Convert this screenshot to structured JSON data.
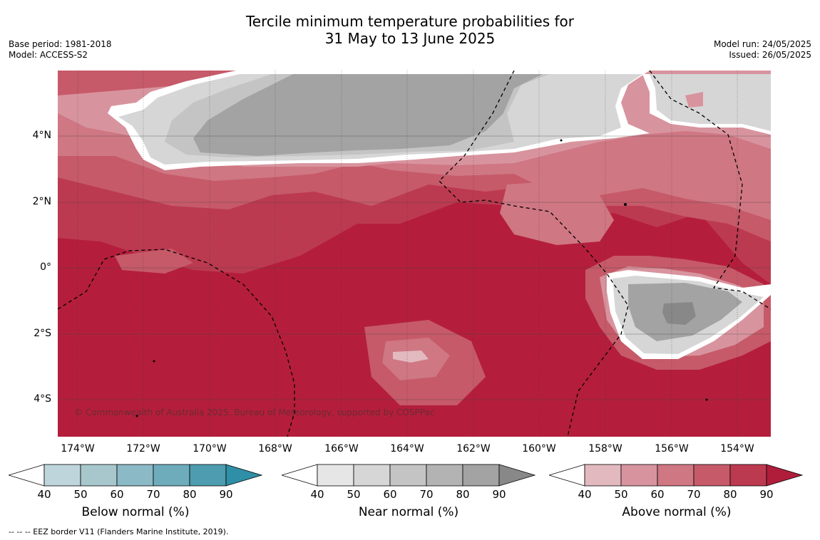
{
  "title_line1": "Tercile minimum temperature probabilities for",
  "title_line2": "31 May to 13 June 2025",
  "base_period": "Base period: 1981-2018",
  "model": "Model: ACCESS-S2",
  "model_run": "Model run: 24/05/2025",
  "issued": "Issued: 26/05/2025",
  "copyright": "© Commonwealth of Australia 2025, Bureau of Meteorology, supported by COSPPac",
  "footnote": "--  --  -- EEZ border V11 (Flanders Marine Institute, 2019).",
  "map": {
    "lon_labels": [
      "174°W",
      "172°W",
      "170°W",
      "168°W",
      "166°W",
      "164°W",
      "162°W",
      "160°W",
      "158°W",
      "156°W",
      "154°W"
    ],
    "lat_labels": [
      "4°N",
      "2°N",
      "0°",
      "2°S",
      "4°S"
    ]
  },
  "colorbars": [
    {
      "title": "Below normal (%)",
      "ticks": [
        "40",
        "50",
        "60",
        "70",
        "80",
        "90"
      ],
      "colors": [
        "#bfd5dc",
        "#a7c7cd",
        "#8bb9c6",
        "#6eacbc",
        "#4d9caf",
        "#2f8fa6"
      ]
    },
    {
      "title": "Near normal (%)",
      "ticks": [
        "40",
        "50",
        "60",
        "70",
        "80",
        "90"
      ],
      "colors": [
        "#e6e6e6",
        "#d6d6d6",
        "#c4c4c4",
        "#b3b3b3",
        "#a3a3a3",
        "#888888"
      ]
    },
    {
      "title": "Above normal (%)",
      "ticks": [
        "40",
        "50",
        "60",
        "70",
        "80",
        "90"
      ],
      "colors": [
        "#e2b9bf",
        "#d8949e",
        "#cf7783",
        "#c65a69",
        "#bc3a50",
        "#b01d3b"
      ]
    }
  ]
}
